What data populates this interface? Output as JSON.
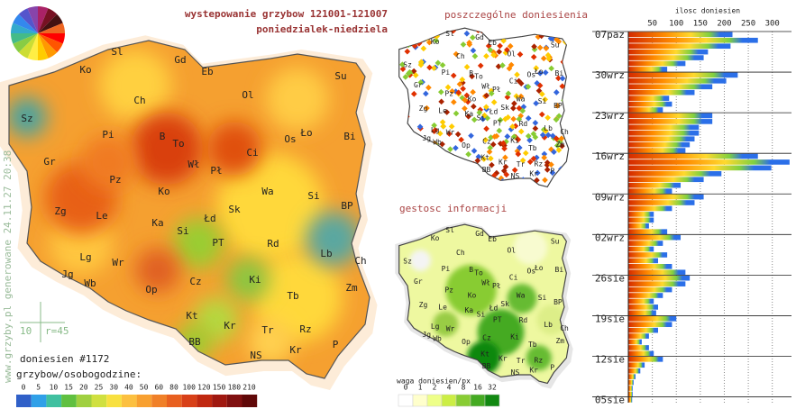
{
  "header": {
    "title": "wystepowanie grzybow 121001-121007",
    "subtitle": "poniedzialek-niedziela"
  },
  "watermark": "www.grzyby.pl generowane 24.11.27 20:38",
  "map": {
    "labels": [
      "Sl",
      "Gd",
      "Eb",
      "Su",
      "Ko",
      "Ol",
      "Sz",
      "Ch",
      "Bi",
      "Pi",
      "B",
      "To",
      "Os",
      "Ło",
      "Gr",
      "Wł",
      "Pł",
      "Ci",
      "Pz",
      "Ko",
      "Wa",
      "Si",
      "Zg",
      "Le",
      "Ka",
      "Łd",
      "Sk",
      "BP",
      "Si",
      "PT",
      "Rd",
      "Lb",
      "Ch",
      "Lg",
      "Wr",
      "Ki",
      "Zm",
      "Jg",
      "Wb",
      "Op",
      "Cz",
      "Tb",
      "Kt",
      "Kr",
      "Tr",
      "Rz",
      "BB",
      "NS",
      "Kr",
      "P"
    ],
    "scale_label": "10",
    "radius_label": "r=45",
    "count": "doniesien #1172",
    "legend_title": "grzybow/osobogodzine:",
    "legend_values": [
      0,
      5,
      10,
      15,
      20,
      25,
      30,
      40,
      50,
      60,
      80,
      100,
      120,
      150,
      180,
      210
    ]
  },
  "dots_map": {
    "title": "poszczególne doniesienia"
  },
  "density_map": {
    "title": "gestosc informacji",
    "legend_title": "waga doniesien/px",
    "legend_values": [
      0,
      1,
      2,
      4,
      8,
      16,
      32
    ]
  },
  "chart_data": {
    "type": "bar",
    "orientation": "horizontal",
    "x_label": "ilosc doniesien",
    "categories": [
      "07paz",
      null,
      null,
      null,
      null,
      null,
      null,
      "30wrz",
      null,
      null,
      null,
      null,
      null,
      null,
      "23wrz",
      null,
      null,
      null,
      null,
      null,
      null,
      "16wrz",
      null,
      null,
      null,
      null,
      null,
      null,
      "09wrz",
      null,
      null,
      null,
      null,
      null,
      null,
      "02wrz",
      null,
      null,
      null,
      null,
      null,
      null,
      "26sie",
      null,
      null,
      null,
      null,
      null,
      null,
      "19sie",
      null,
      null,
      null,
      null,
      null,
      null,
      "12sie",
      null,
      null,
      null,
      null,
      null,
      null,
      "05sie"
    ],
    "values": [
      217,
      270,
      213,
      166,
      157,
      119,
      81,
      228,
      204,
      175,
      138,
      85,
      91,
      72,
      175,
      175,
      147,
      147,
      138,
      128,
      119,
      270,
      336,
      298,
      194,
      157,
      109,
      91,
      157,
      138,
      91,
      53,
      53,
      43,
      81,
      109,
      72,
      53,
      81,
      62,
      91,
      119,
      128,
      119,
      91,
      72,
      53,
      62,
      58,
      100,
      91,
      62,
      43,
      28,
      43,
      53,
      72,
      34,
      25,
      15,
      11,
      9,
      9,
      8
    ],
    "colors": [
      "#d42a00",
      "#ff8c00",
      "#ffd92e",
      "#7fd040",
      "#2b6fe8"
    ],
    "xlim": [
      0,
      340
    ],
    "xticks": [
      50,
      100,
      150,
      200,
      250,
      300
    ],
    "grid": true
  }
}
